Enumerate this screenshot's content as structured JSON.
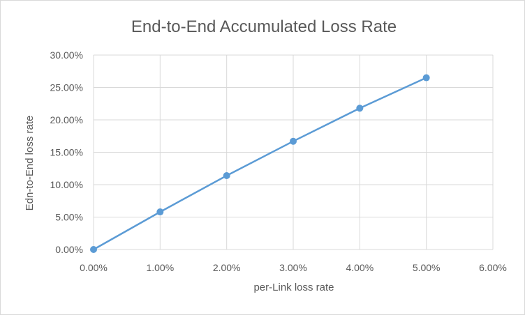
{
  "chart_data": {
    "type": "line",
    "title": "End-to-End Accumulated Loss Rate",
    "xlabel": "per-Link loss rate",
    "ylabel": "Edn-to-End  loss rate",
    "x_ticks": [
      "0.00%",
      "1.00%",
      "2.00%",
      "3.00%",
      "4.00%",
      "5.00%",
      "6.00%"
    ],
    "y_ticks": [
      "0.00%",
      "5.00%",
      "10.00%",
      "15.00%",
      "20.00%",
      "25.00%",
      "30.00%"
    ],
    "xlim": [
      0,
      0.06
    ],
    "ylim": [
      0,
      0.3
    ],
    "grid": true,
    "legend": "none",
    "series": [
      {
        "color": "#5b9bd5",
        "x": [
          0.0,
          0.01,
          0.02,
          0.03,
          0.04,
          0.05
        ],
        "y": [
          0.0,
          0.058,
          0.114,
          0.167,
          0.218,
          0.265
        ]
      }
    ]
  }
}
